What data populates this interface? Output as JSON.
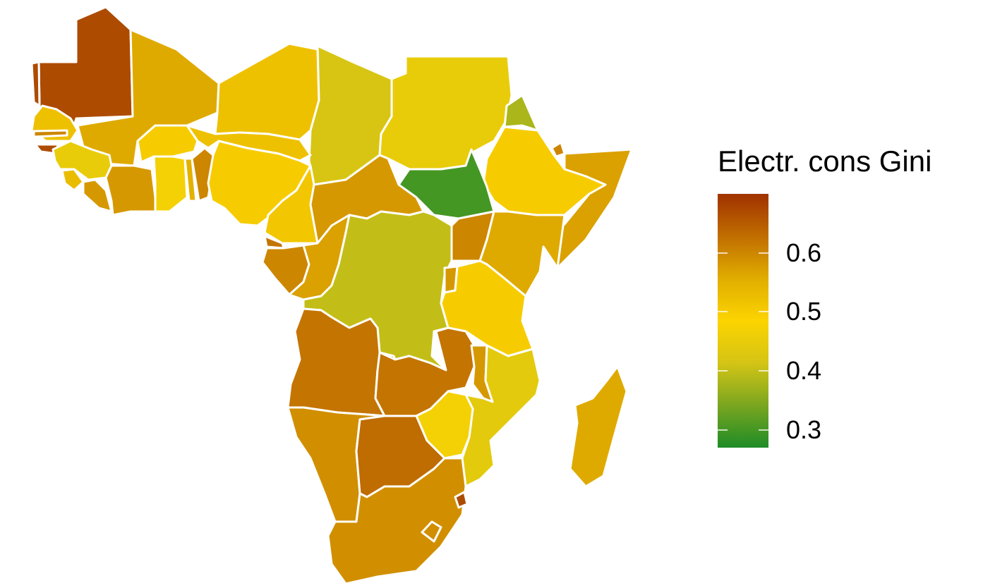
{
  "legend": {
    "title": "Electr. cons Gini",
    "min": 0.27,
    "max": 0.7,
    "ticks": [
      {
        "value": 0.6,
        "label": "0.6"
      },
      {
        "value": 0.5,
        "label": "0.5"
      },
      {
        "value": 0.4,
        "label": "0.4"
      },
      {
        "value": 0.3,
        "label": "0.3"
      }
    ],
    "stops": [
      "#1e8c27",
      "#7aa620",
      "#d4c415",
      "#fcd400",
      "#e0ad00",
      "#c06d00",
      "#a03200"
    ]
  },
  "regions": [
    {
      "name": "mauritania",
      "value": 0.67
    },
    {
      "name": "western-sahara",
      "value": 0.67
    },
    {
      "name": "mali",
      "value": 0.56
    },
    {
      "name": "algeria-libya",
      "value": 0.52
    },
    {
      "name": "chad",
      "value": 0.42
    },
    {
      "name": "sudan",
      "value": 0.45
    },
    {
      "name": "eritrea",
      "value": 0.38
    },
    {
      "name": "djibouti",
      "value": 0.6
    },
    {
      "name": "somalia",
      "value": 0.57
    },
    {
      "name": "ethiopia",
      "value": 0.5
    },
    {
      "name": "south-sudan",
      "value": 0.3
    },
    {
      "name": "senegal",
      "value": 0.52
    },
    {
      "name": "gambia",
      "value": 0.6
    },
    {
      "name": "guinea-bissau",
      "value": 0.67
    },
    {
      "name": "guinea",
      "value": 0.45
    },
    {
      "name": "sierra-leone",
      "value": 0.53
    },
    {
      "name": "liberia",
      "value": 0.58
    },
    {
      "name": "cote-divoire",
      "value": 0.58
    },
    {
      "name": "burkina-faso",
      "value": 0.5
    },
    {
      "name": "ghana",
      "value": 0.47
    },
    {
      "name": "togo",
      "value": 0.55
    },
    {
      "name": "benin",
      "value": 0.6
    },
    {
      "name": "niger",
      "value": 0.52
    },
    {
      "name": "nigeria",
      "value": 0.5
    },
    {
      "name": "cameroon",
      "value": 0.51
    },
    {
      "name": "car",
      "value": 0.58
    },
    {
      "name": "equatorial-guinea",
      "value": 0.62
    },
    {
      "name": "gabon",
      "value": 0.6
    },
    {
      "name": "congo",
      "value": 0.57
    },
    {
      "name": "dr-congo",
      "value": 0.4
    },
    {
      "name": "uganda",
      "value": 0.6
    },
    {
      "name": "kenya",
      "value": 0.56
    },
    {
      "name": "rwanda-burundi",
      "value": 0.58
    },
    {
      "name": "tanzania",
      "value": 0.5
    },
    {
      "name": "angola",
      "value": 0.62
    },
    {
      "name": "zambia",
      "value": 0.62
    },
    {
      "name": "malawi",
      "value": 0.58
    },
    {
      "name": "mozambique",
      "value": 0.44
    },
    {
      "name": "zimbabwe",
      "value": 0.47
    },
    {
      "name": "namibia",
      "value": 0.59
    },
    {
      "name": "botswana",
      "value": 0.63
    },
    {
      "name": "south-africa",
      "value": 0.59
    },
    {
      "name": "lesotho",
      "value": 0.59
    },
    {
      "name": "eswatini",
      "value": 0.67
    },
    {
      "name": "madagascar",
      "value": 0.56
    }
  ]
}
